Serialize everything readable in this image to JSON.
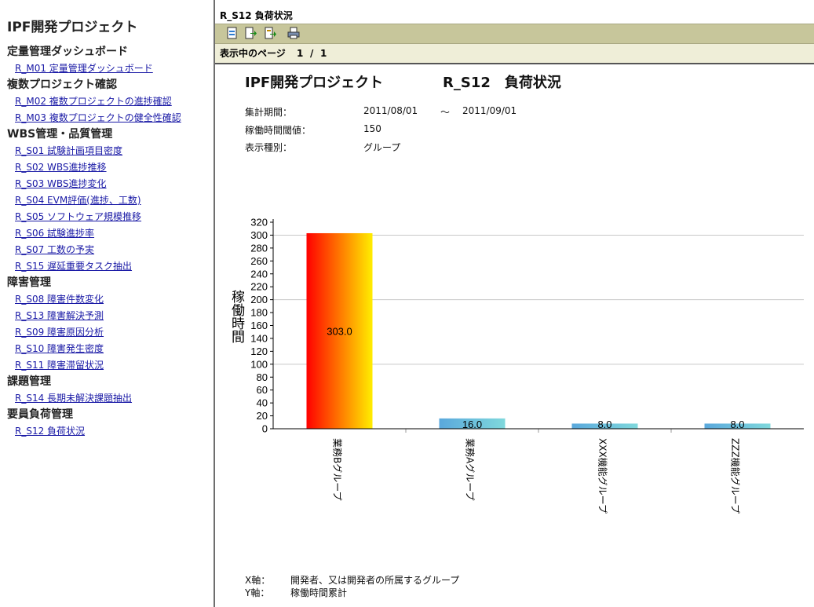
{
  "sidebar": {
    "app_title": "IPF開発プロジェクト",
    "groups": [
      {
        "category": "定量管理ダッシュボード",
        "links": [
          "R_M01 定量管理ダッシュボード"
        ]
      },
      {
        "category": "複数プロジェクト確認",
        "links": [
          "R_M02 複数プロジェクトの進捗確認",
          "R_M03 複数プロジェクトの健全性確認"
        ]
      },
      {
        "category": "WBS管理・品質管理",
        "links": [
          "R_S01 試験計画項目密度",
          "R_S02 WBS進捗推移",
          "R_S03 WBS進捗変化",
          "R_S04 EVM評価(進捗、工数)",
          "R_S05 ソフトウェア規模推移",
          "R_S06 試験進捗率",
          "R_S07 工数の予実",
          "R_S15 遅延重要タスク抽出"
        ]
      },
      {
        "category": "障害管理",
        "links": [
          "R_S08 障害件数変化",
          "R_S13 障害解決予測",
          "R_S09 障害原因分析",
          "R_S10 障害発生密度",
          "R_S11 障害滞留状況"
        ]
      },
      {
        "category": "課題管理",
        "links": [
          "R_S14 長期未解決課題抽出"
        ]
      },
      {
        "category": "要員負荷管理",
        "links": [
          "R_S12 負荷状況"
        ]
      }
    ]
  },
  "main": {
    "report_title": "R_S12 負荷状況",
    "page_label": "表示中のページ",
    "page_current": "1",
    "page_sep": "/",
    "page_total": "1",
    "heading_project": "IPF開発プロジェクト",
    "heading_report": "R_S12　負荷状況",
    "meta": {
      "period_label": "集計期間：",
      "period_from": "2011/08/01",
      "period_tilde": "～",
      "period_to": "2011/09/01",
      "threshold_label": "稼働時間閾値：",
      "threshold_value": "150",
      "type_label": "表示種別：",
      "type_value": "グループ"
    },
    "footer": {
      "x_label": "X軸：",
      "x_value": "開発者、又は開発者の所属するグループ",
      "y_label": "Y軸：",
      "y_value": "稼働時間累計"
    }
  },
  "chart_data": {
    "type": "bar",
    "categories": [
      "業務Bグループ",
      "業務Aグループ",
      "XXX機能グループ",
      "ZZZ機能グループ"
    ],
    "values": [
      303.0,
      16.0,
      8.0,
      8.0
    ],
    "value_labels": [
      "303.0",
      "16.0",
      "8.0",
      "8.0"
    ],
    "ylabel": "稼働時間",
    "ylim": [
      0,
      320
    ],
    "yticks": [
      0,
      20,
      40,
      60,
      80,
      100,
      120,
      140,
      160,
      180,
      200,
      220,
      240,
      260,
      280,
      300,
      320
    ],
    "grid": true,
    "colors": {
      "over_threshold": [
        "#ff0000",
        "#ffee00"
      ],
      "normal": [
        "#5aa8dc",
        "#7fd8dc"
      ]
    }
  }
}
